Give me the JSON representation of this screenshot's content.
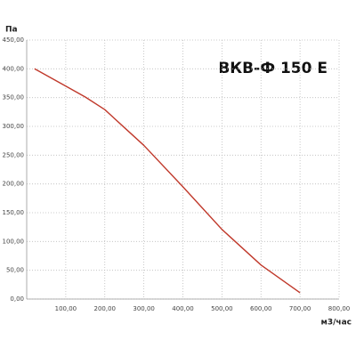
{
  "chart_data": {
    "type": "line",
    "title": "ВКВ-Ф 150 Е",
    "y_label": "Па",
    "x_label": "м3/час",
    "x": [
      20,
      100,
      150,
      200,
      250,
      300,
      400,
      500,
      600,
      700
    ],
    "values": [
      400,
      370,
      351,
      329,
      298,
      267,
      195,
      121,
      59,
      11
    ],
    "color": "#c0392b",
    "xlim": [
      0,
      800
    ],
    "xticks": [
      {
        "value": 100,
        "label": "100,00"
      },
      {
        "value": 200,
        "label": "200,00"
      },
      {
        "value": 300,
        "label": "300,00"
      },
      {
        "value": 400,
        "label": "400,00"
      },
      {
        "value": 500,
        "label": "500,00"
      },
      {
        "value": 600,
        "label": "600,00"
      },
      {
        "value": 700,
        "label": "700,00"
      },
      {
        "value": 800,
        "label": "800,00"
      }
    ],
    "ylim": [
      0,
      450
    ],
    "yticks": [
      {
        "value": 0,
        "label": "0,00"
      },
      {
        "value": 50,
        "label": "50,00"
      },
      {
        "value": 100,
        "label": "100,00"
      },
      {
        "value": 150,
        "label": "150,00"
      },
      {
        "value": 200,
        "label": "200,00"
      },
      {
        "value": 250,
        "label": "250,00"
      },
      {
        "value": 300,
        "label": "300,00"
      },
      {
        "value": 350,
        "label": "350,00"
      },
      {
        "value": 400,
        "label": "400,00"
      },
      {
        "value": 450,
        "label": "450,00"
      }
    ],
    "grid": true
  }
}
